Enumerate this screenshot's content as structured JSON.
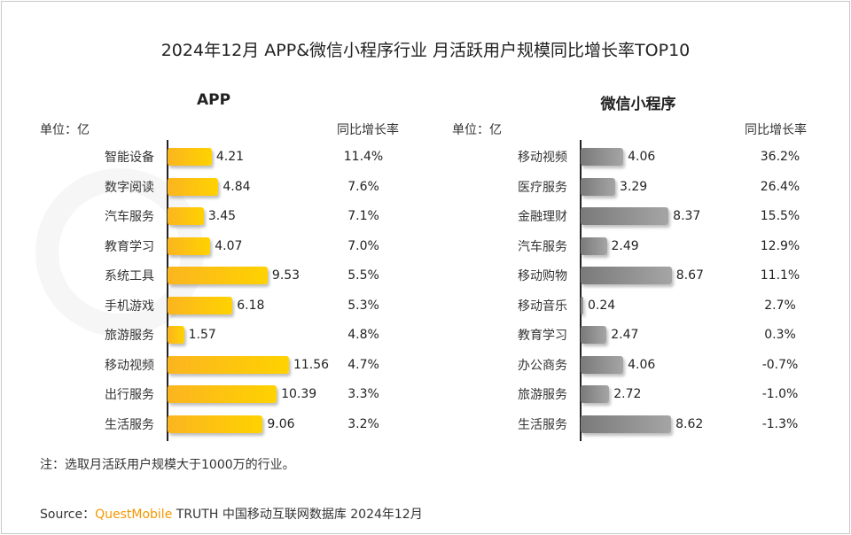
{
  "title": "2024年12月 APP&微信小程序行业 月活跃用户规模同比增长率TOP10",
  "watermark": "QUESTMOBILE",
  "colors": {
    "app_bar": "#fbb520",
    "app_bar_end": "#ffd200",
    "mini_bar": "#7a7a7a",
    "mini_bar_end": "#a5a5a5",
    "brand": "#f39800"
  },
  "chart_data": [
    {
      "type": "bar",
      "orientation": "horizontal",
      "title": "APP",
      "unit_label": "单位：亿",
      "growth_header": "同比增长率",
      "categories": [
        "智能设备",
        "数字阅读",
        "汽车服务",
        "教育学习",
        "系统工具",
        "手机游戏",
        "旅游服务",
        "移动视频",
        "出行服务",
        "生活服务"
      ],
      "values": [
        4.21,
        4.84,
        3.45,
        4.07,
        9.53,
        6.18,
        1.57,
        11.56,
        10.39,
        9.06
      ],
      "value_labels": [
        "4.21",
        "4.84",
        "3.45",
        "4.07",
        "9.53",
        "6.18",
        "1.57",
        "11.56",
        "10.39",
        "9.06"
      ],
      "growth": [
        "11.4%",
        "7.6%",
        "7.1%",
        "7.0%",
        "5.5%",
        "5.3%",
        "4.8%",
        "4.7%",
        "3.3%",
        "3.2%"
      ],
      "xlim": [
        0,
        12.5
      ]
    },
    {
      "type": "bar",
      "orientation": "horizontal",
      "title": "微信小程序",
      "unit_label": "单位：亿",
      "growth_header": "同比增长率",
      "categories": [
        "移动视频",
        "医疗服务",
        "金融理财",
        "汽车服务",
        "移动购物",
        "移动音乐",
        "教育学习",
        "办公商务",
        "旅游服务",
        "生活服务"
      ],
      "values": [
        4.06,
        3.29,
        8.37,
        2.49,
        8.67,
        0.24,
        2.47,
        4.06,
        2.72,
        8.62
      ],
      "value_labels": [
        "4.06",
        "3.29",
        "8.37",
        "2.49",
        "8.67",
        "0.24",
        "2.47",
        "4.06",
        "2.72",
        "8.62"
      ],
      "growth": [
        "36.2%",
        "26.4%",
        "15.5%",
        "12.9%",
        "11.1%",
        "2.7%",
        "0.3%",
        "-0.7%",
        "-1.0%",
        "-1.3%"
      ],
      "xlim": [
        0,
        12.5
      ]
    }
  ],
  "note": "注：选取月活跃用户规模大于1000万的行业。",
  "source": {
    "prefix": "Source：",
    "brand": "QuestMobile",
    "rest": " TRUTH 中国移动互联网数据库 2024年12月"
  }
}
